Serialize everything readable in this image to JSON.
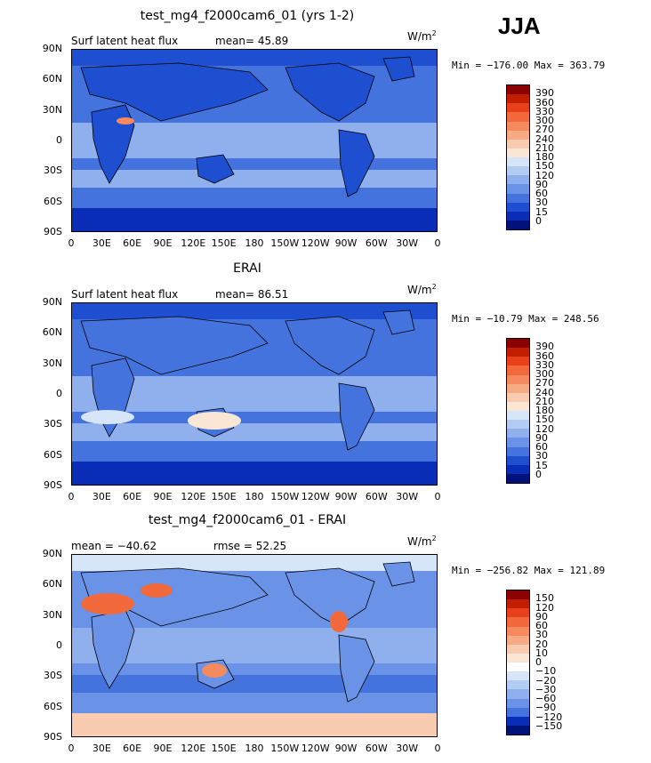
{
  "season": "JJA",
  "panels": [
    {
      "title": "test_mg4_f2000cam6_01 (yrs 1-2)",
      "left_label": "Surf latent heat flux",
      "stat_label": "mean=",
      "stat_value": "45.89",
      "units": "W/m",
      "units_sup": "2",
      "minmax": "Min = −176.00  Max = 363.79",
      "levels": [
        "390",
        "360",
        "330",
        "300",
        "270",
        "240",
        "210",
        "180",
        "150",
        "120",
        "90",
        "60",
        "30",
        "15",
        "0"
      ],
      "colors": [
        "#8b0000",
        "#c21f00",
        "#e8401a",
        "#f26a3c",
        "#f58a5e",
        "#f7ab84",
        "#f9cbb0",
        "#fbe6d6",
        "#d6e6f8",
        "#b3ccf2",
        "#8fb0ec",
        "#6a92e6",
        "#4573dd",
        "#1f4fd1",
        "#0a2db8",
        "#00127a"
      ]
    },
    {
      "title": "ERAI",
      "left_label": "Surf latent heat flux",
      "stat_label": "mean=",
      "stat_value": "86.51",
      "units": "W/m",
      "units_sup": "2",
      "minmax": "Min = −10.79  Max = 248.56",
      "levels": [
        "390",
        "360",
        "330",
        "300",
        "270",
        "240",
        "210",
        "180",
        "150",
        "120",
        "90",
        "60",
        "30",
        "15",
        "0"
      ],
      "colors": [
        "#8b0000",
        "#c21f00",
        "#e8401a",
        "#f26a3c",
        "#f58a5e",
        "#f7ab84",
        "#f9cbb0",
        "#fbe6d6",
        "#d6e6f8",
        "#b3ccf2",
        "#8fb0ec",
        "#6a92e6",
        "#4573dd",
        "#1f4fd1",
        "#0a2db8",
        "#00127a"
      ]
    },
    {
      "title": "test_mg4_f2000cam6_01 - ERAI",
      "left_label": "mean = −40.62",
      "stat_label": "rmse =",
      "stat_value": "52.25",
      "units": "W/m",
      "units_sup": "2",
      "minmax": "Min = −256.82  Max = 121.89",
      "levels": [
        "150",
        "120",
        "90",
        "60",
        "30",
        "20",
        "10",
        "0",
        "−10",
        "−20",
        "−30",
        "−60",
        "−90",
        "−120",
        "−150"
      ],
      "colors": [
        "#8b0000",
        "#c21f00",
        "#e8401a",
        "#f26a3c",
        "#f58a5e",
        "#f7ab84",
        "#f9cbb0",
        "#fbe6d6",
        "#ffffff",
        "#d6e6f8",
        "#b3ccf2",
        "#8fb0ec",
        "#6a92e6",
        "#4573dd",
        "#0a2db8",
        "#00127a"
      ]
    }
  ],
  "lat_ticks": [
    "90N",
    "60N",
    "30N",
    "0",
    "30S",
    "60S",
    "90S"
  ],
  "lon_ticks": [
    "0",
    "30E",
    "60E",
    "90E",
    "120E",
    "150E",
    "180",
    "150W",
    "120W",
    "90W",
    "60W",
    "30W",
    "0"
  ],
  "ocean_colors": {
    "base": "#4573dd",
    "trop": "#8fb0ec",
    "dark": "#1f4fd1",
    "warm": "#f9cbb0",
    "diff_base": "#6a92e6"
  }
}
